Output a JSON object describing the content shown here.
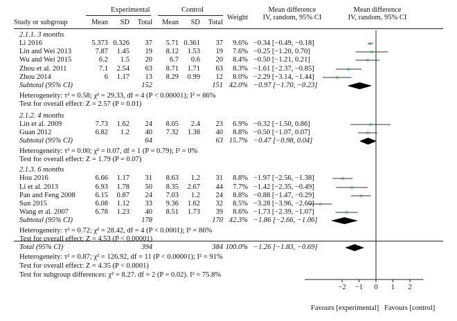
{
  "header": {
    "col_study": "Study or subgroup",
    "group_experimental": "Experimental",
    "group_control": "Control",
    "col_mean": "Mean",
    "col_sd": "SD",
    "col_total": "Total",
    "col_weight": "Weight",
    "col_md_title": "Mean difference",
    "col_md_method": "IV, random, 95% CI"
  },
  "subgroups": [
    {
      "title": "2.1.1. 3 months",
      "studies": [
        {
          "name": "Li 2016",
          "e_mean": "5.373",
          "e_sd": "0.326",
          "e_total": "37",
          "c_mean": "5.71",
          "c_sd": "0.361",
          "c_total": "37",
          "weight": "9.6%",
          "ci_text": "−0.34 [−0.49, −0.18]",
          "md": -0.34,
          "lo": -0.49,
          "hi": -0.18
        },
        {
          "name": "Lin and Wei 2013",
          "e_mean": "7.87",
          "e_sd": "1.45",
          "e_total": "19",
          "c_mean": "8.12",
          "c_sd": "1.53",
          "c_total": "19",
          "weight": "7.6%",
          "ci_text": "−0.25 [−1.20, 0.70]",
          "md": -0.25,
          "lo": -1.2,
          "hi": 0.7
        },
        {
          "name": "Wu and Wei 2015",
          "e_mean": "6.2",
          "e_sd": "1.5",
          "e_total": "20",
          "c_mean": "6.7",
          "c_sd": "0.6",
          "c_total": "20",
          "weight": "8.4%",
          "ci_text": "−0.50 [−1.21, 0.21]",
          "md": -0.5,
          "lo": -1.21,
          "hi": 0.21
        },
        {
          "name": "Zhou et al. 2011",
          "e_mean": "7.1",
          "e_sd": "2.54",
          "e_total": "63",
          "c_mean": "8.71",
          "c_sd": "1.71",
          "c_total": "63",
          "weight": "8.3%",
          "ci_text": "−1.61 [−2.37, −0.85]",
          "md": -1.61,
          "lo": -2.37,
          "hi": -0.85
        },
        {
          "name": "Zhou 2014",
          "e_mean": "6",
          "e_sd": "1.17",
          "e_total": "13",
          "c_mean": "8.29",
          "c_sd": "0.99",
          "c_total": "12",
          "weight": "8.0%",
          "ci_text": "−2.29 [−3.14, −1.44]",
          "md": -2.29,
          "lo": -3.14,
          "hi": -1.44
        }
      ],
      "subtotal": {
        "label": "Subtotal (95% CI)",
        "e_total": "152",
        "c_total": "151",
        "weight": "42.0%",
        "ci_text": "−0.97 [−1.70, −0.23]",
        "md": -0.97,
        "lo": -1.7,
        "hi": -0.23
      },
      "heterogeneity": "Heterogeneity: τ² = 0.58; χ² = 29.33, df = 4 (P < 0.00001); I² = 86%",
      "overall_effect": "Test for overall effect: Z = 2.57 (P = 0.01)"
    },
    {
      "title": "2.1.2. 4 months",
      "studies": [
        {
          "name": "Lin et al. 2009",
          "e_mean": "7.73",
          "e_sd": "1.62",
          "e_total": "24",
          "c_mean": "8.05",
          "c_sd": "2.4",
          "c_total": "23",
          "weight": "6.9%",
          "ci_text": "−0.32 [−1.50, 0.86]",
          "md": -0.32,
          "lo": -1.5,
          "hi": 0.86
        },
        {
          "name": "Guan 2012",
          "e_mean": "6.82",
          "e_sd": "1.2",
          "e_total": "40",
          "c_mean": "7.32",
          "c_sd": "1.38",
          "c_total": "40",
          "weight": "8.8%",
          "ci_text": "−0.50 [−1.07, 0.07]",
          "md": -0.5,
          "lo": -1.07,
          "hi": 0.07
        }
      ],
      "subtotal": {
        "label": "Subtotal (95% CI)",
        "e_total": "64",
        "c_total": "63",
        "weight": "15.7%",
        "ci_text": "−0.47 [−0.98, 0.04]",
        "md": -0.47,
        "lo": -0.98,
        "hi": 0.04
      },
      "heterogeneity": "Heterogeneity: τ² = 0.00; χ² = 0.07, df = 1 (P = 0.79); I² = 0%",
      "overall_effect": "Test for overall effect: Z = 1.79 (P = 0.07)"
    },
    {
      "title": "2.1.3. 6 months",
      "studies": [
        {
          "name": "Hou 2016",
          "e_mean": "6.66",
          "e_sd": "1.17",
          "e_total": "31",
          "c_mean": "8.63",
          "c_sd": "1.2",
          "c_total": "31",
          "weight": "8.8%",
          "ci_text": "−1.97 [−2.56, −1.38]",
          "md": -1.97,
          "lo": -2.56,
          "hi": -1.38
        },
        {
          "name": "Li et al. 2013",
          "e_mean": "6.93",
          "e_sd": "1.78",
          "e_total": "50",
          "c_mean": "8.35",
          "c_sd": "2.67",
          "c_total": "44",
          "weight": "7.7%",
          "ci_text": "−1.42 [−2.35, −0.49]",
          "md": -1.42,
          "lo": -2.35,
          "hi": -0.49
        },
        {
          "name": "Pan and Feng 2008",
          "e_mean": "6.15",
          "e_sd": "0.87",
          "e_total": "24",
          "c_mean": "7.03",
          "c_sd": "1.2",
          "c_total": "24",
          "weight": "8.8%",
          "ci_text": "−0.88 [−1.47, −0.29]",
          "md": -0.88,
          "lo": -1.47,
          "hi": -0.29
        },
        {
          "name": "Sun 2015",
          "e_mean": "6.08",
          "e_sd": "1.12",
          "e_total": "33",
          "c_mean": "9.36",
          "c_sd": "1.62",
          "c_total": "32",
          "weight": "8.5%",
          "ci_text": "−3.28 [−3.96, −2.60]",
          "md": -3.28,
          "lo": -3.96,
          "hi": -2.6
        },
        {
          "name": "Wang et al. 2007",
          "e_mean": "6.78",
          "e_sd": "1.23",
          "e_total": "40",
          "c_mean": "8.51",
          "c_sd": "1.73",
          "c_total": "39",
          "weight": "8.6%",
          "ci_text": "−1.73 [−2.39, −1.07]",
          "md": -1.73,
          "lo": -2.39,
          "hi": -1.07
        }
      ],
      "subtotal": {
        "label": "Subtotal (95% CI)",
        "e_total": "178",
        "c_total": "170",
        "weight": "42.3%",
        "ci_text": "−1.86 [−2.66, −1.06]",
        "md": -1.86,
        "lo": -2.66,
        "hi": -1.06
      },
      "heterogeneity": "Heterogeneity: τ² = 0.72; χ² = 28.42, df = 4 (P < 0.0001); I² = 86%",
      "overall_effect": "Test for overall effect: Z = 4.53 (P < 0.00001)"
    }
  ],
  "total": {
    "label": "Total (95% CI)",
    "e_total": "394",
    "c_total": "384",
    "weight": "100.0%",
    "ci_text": "−1.26 [−1.83, −0.69]",
    "md": -1.26,
    "lo": -1.83,
    "hi": -0.69
  },
  "total_heterogeneity": "Heterogeneity: τ² = 0.87; χ² = 126.92, df = 11 (P < 0.00001); I² = 91%",
  "total_overall_effect": "Test for overall effect: Z = 4.35 (P < 0.0001)",
  "subgroup_differences": "Test for subgroup differences: χ² = 8.27. df = 2 (P = 0.02). I² = 75.8%",
  "axis": {
    "ticks": [
      "−2",
      "−1",
      "0",
      "1",
      "2"
    ],
    "tick_values": [
      -2,
      -1,
      0,
      1,
      2
    ],
    "xlim": [
      -4.2,
      2.8
    ]
  },
  "favours_left": "Favours [experimental]",
  "favours_right": "Favours [control]",
  "colors": {
    "point": "#4caf50",
    "line": "#333333",
    "diamond": "#000000"
  },
  "chart_data": {
    "type": "scatter",
    "title": "",
    "xlabel": "",
    "ylabel": "",
    "xlim": [
      -4.2,
      2.8
    ],
    "x_ticks": [
      -2,
      -1,
      0,
      1,
      2
    ],
    "reference_line": 0,
    "categories": [
      "Li 2016",
      "Lin and Wei 2013",
      "Wu and Wei 2015",
      "Zhou et al. 2011",
      "Zhou 2014",
      "Lin et al. 2009",
      "Guan 2012",
      "Hou 2016",
      "Li et al. 2013",
      "Pan and Feng 2008",
      "Sun 2015",
      "Wang et al. 2007"
    ],
    "values": [
      -0.34,
      -0.25,
      -0.5,
      -1.61,
      -2.29,
      -0.32,
      -0.5,
      -1.97,
      -1.42,
      -0.88,
      -3.28,
      -1.73
    ],
    "ci_low": [
      -0.49,
      -1.2,
      -1.21,
      -2.37,
      -3.14,
      -1.5,
      -1.07,
      -2.56,
      -2.35,
      -1.47,
      -3.96,
      -2.39
    ],
    "ci_high": [
      -0.18,
      0.7,
      0.21,
      -0.85,
      -1.44,
      0.86,
      0.07,
      -1.38,
      -0.49,
      -0.29,
      -2.6,
      -1.07
    ],
    "pooled": [
      {
        "name": "Subtotal (95% CI)",
        "md": -0.97,
        "lo": -1.7,
        "hi": -0.23
      },
      {
        "name": "Subtotal (95% CI)",
        "md": -0.47,
        "lo": -0.98,
        "hi": 0.04
      },
      {
        "name": "Subtotal (95% CI)",
        "md": -1.86,
        "lo": -2.66,
        "hi": -1.06
      },
      {
        "name": "Total (95% CI)",
        "md": -1.26,
        "lo": -1.83,
        "hi": -0.69
      }
    ]
  }
}
